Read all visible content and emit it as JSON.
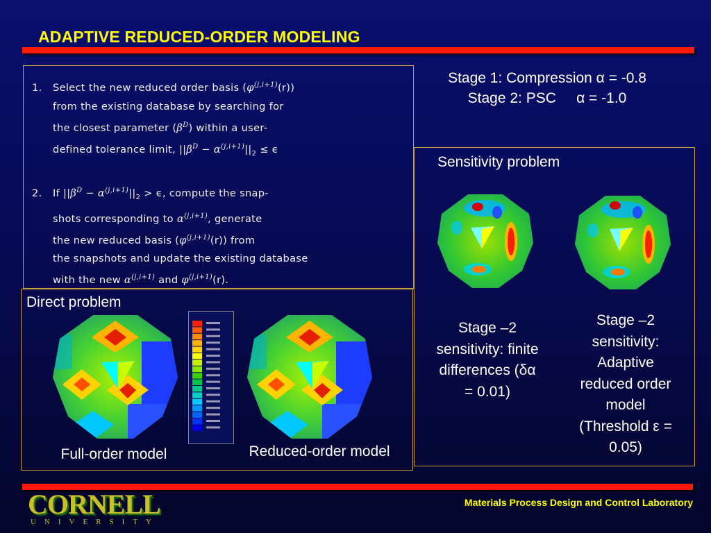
{
  "slide": {
    "title": "ADAPTIVE REDUCED-ORDER MODELING",
    "footer": "Materials Process Design and Control Laboratory",
    "logo": {
      "word": "CORNELL",
      "sub": "UNIVERSITY"
    }
  },
  "algorithm": {
    "step1": {
      "number": "1.",
      "l1a": "Select the new reduced order basis (",
      "l1sym": "φ",
      "l1sup": "(j,i+1)",
      "l1b": "(r))",
      "l2": "from the existing database by searching for",
      "l3a": "the closest parameter (",
      "l3sym": "β",
      "l3sup": "D",
      "l3b": ") within a user-",
      "l4a": "defined tolerance limit, ||",
      "l4b": "β",
      "l4sup1": "D",
      "l4c": " − α",
      "l4sup2": "(j,i+1)",
      "l4d": "||",
      "l4e": "2",
      "l4f": " ≤ ϵ"
    },
    "step2": {
      "number": "2.",
      "l1a": "If ||",
      "l1b": "β",
      "l1sup1": "D",
      "l1c": " − α",
      "l1sup2": "(j,i+1)",
      "l1d": "||",
      "l1e": "2",
      "l1f": " > ϵ, compute the snap-",
      "l2a": "shots corresponding to ",
      "l2sym": "α",
      "l2sup": "(j,i+1)",
      "l2b": ", generate",
      "l3a": "the new reduced basis (",
      "l3sym": "φ",
      "l3sup": "(j,i+1)",
      "l3b": "(r)) from",
      "l4": "the snapshots and update the existing database",
      "l5a": "with the new ",
      "l5sym1": "α",
      "l5sup1": "(j,i+1)",
      "l5b": " and ",
      "l5sym2": "φ",
      "l5sup2": "(j,i+1)",
      "l5c": "(r)."
    }
  },
  "stages": {
    "line1": "Stage 1: Compression α = -0.8",
    "line2": "Stage 2: PSC     α = -1.0"
  },
  "sensitivity": {
    "label": "Sensitivity problem",
    "caption_fd": [
      "Stage –2",
      "sensitivity: finite",
      "differences (δα",
      "= 0.01)"
    ],
    "caption_arom": [
      "Stage –2",
      "sensitivity:",
      "Adaptive",
      "reduced order",
      "model",
      "(Threshold ε =",
      "0.05)"
    ]
  },
  "direct": {
    "label": "Direct problem",
    "caption_full": "Full-order model",
    "caption_reduced": "Reduced-order model"
  },
  "legend": {
    "colors": [
      "#ff2000",
      "#ff5a00",
      "#ff8c00",
      "#ffb400",
      "#ffd700",
      "#ffff00",
      "#c8f000",
      "#8ce600",
      "#3cd200",
      "#00c846",
      "#00c88c",
      "#00d2c8",
      "#00c8ff",
      "#0096ff",
      "#0064ff",
      "#0032ff",
      "#0000e6"
    ],
    "ticks": [
      "",
      "",
      "",
      "",
      "",
      "",
      "",
      "",
      "",
      "",
      "",
      "",
      "",
      "",
      "",
      "",
      ""
    ]
  }
}
